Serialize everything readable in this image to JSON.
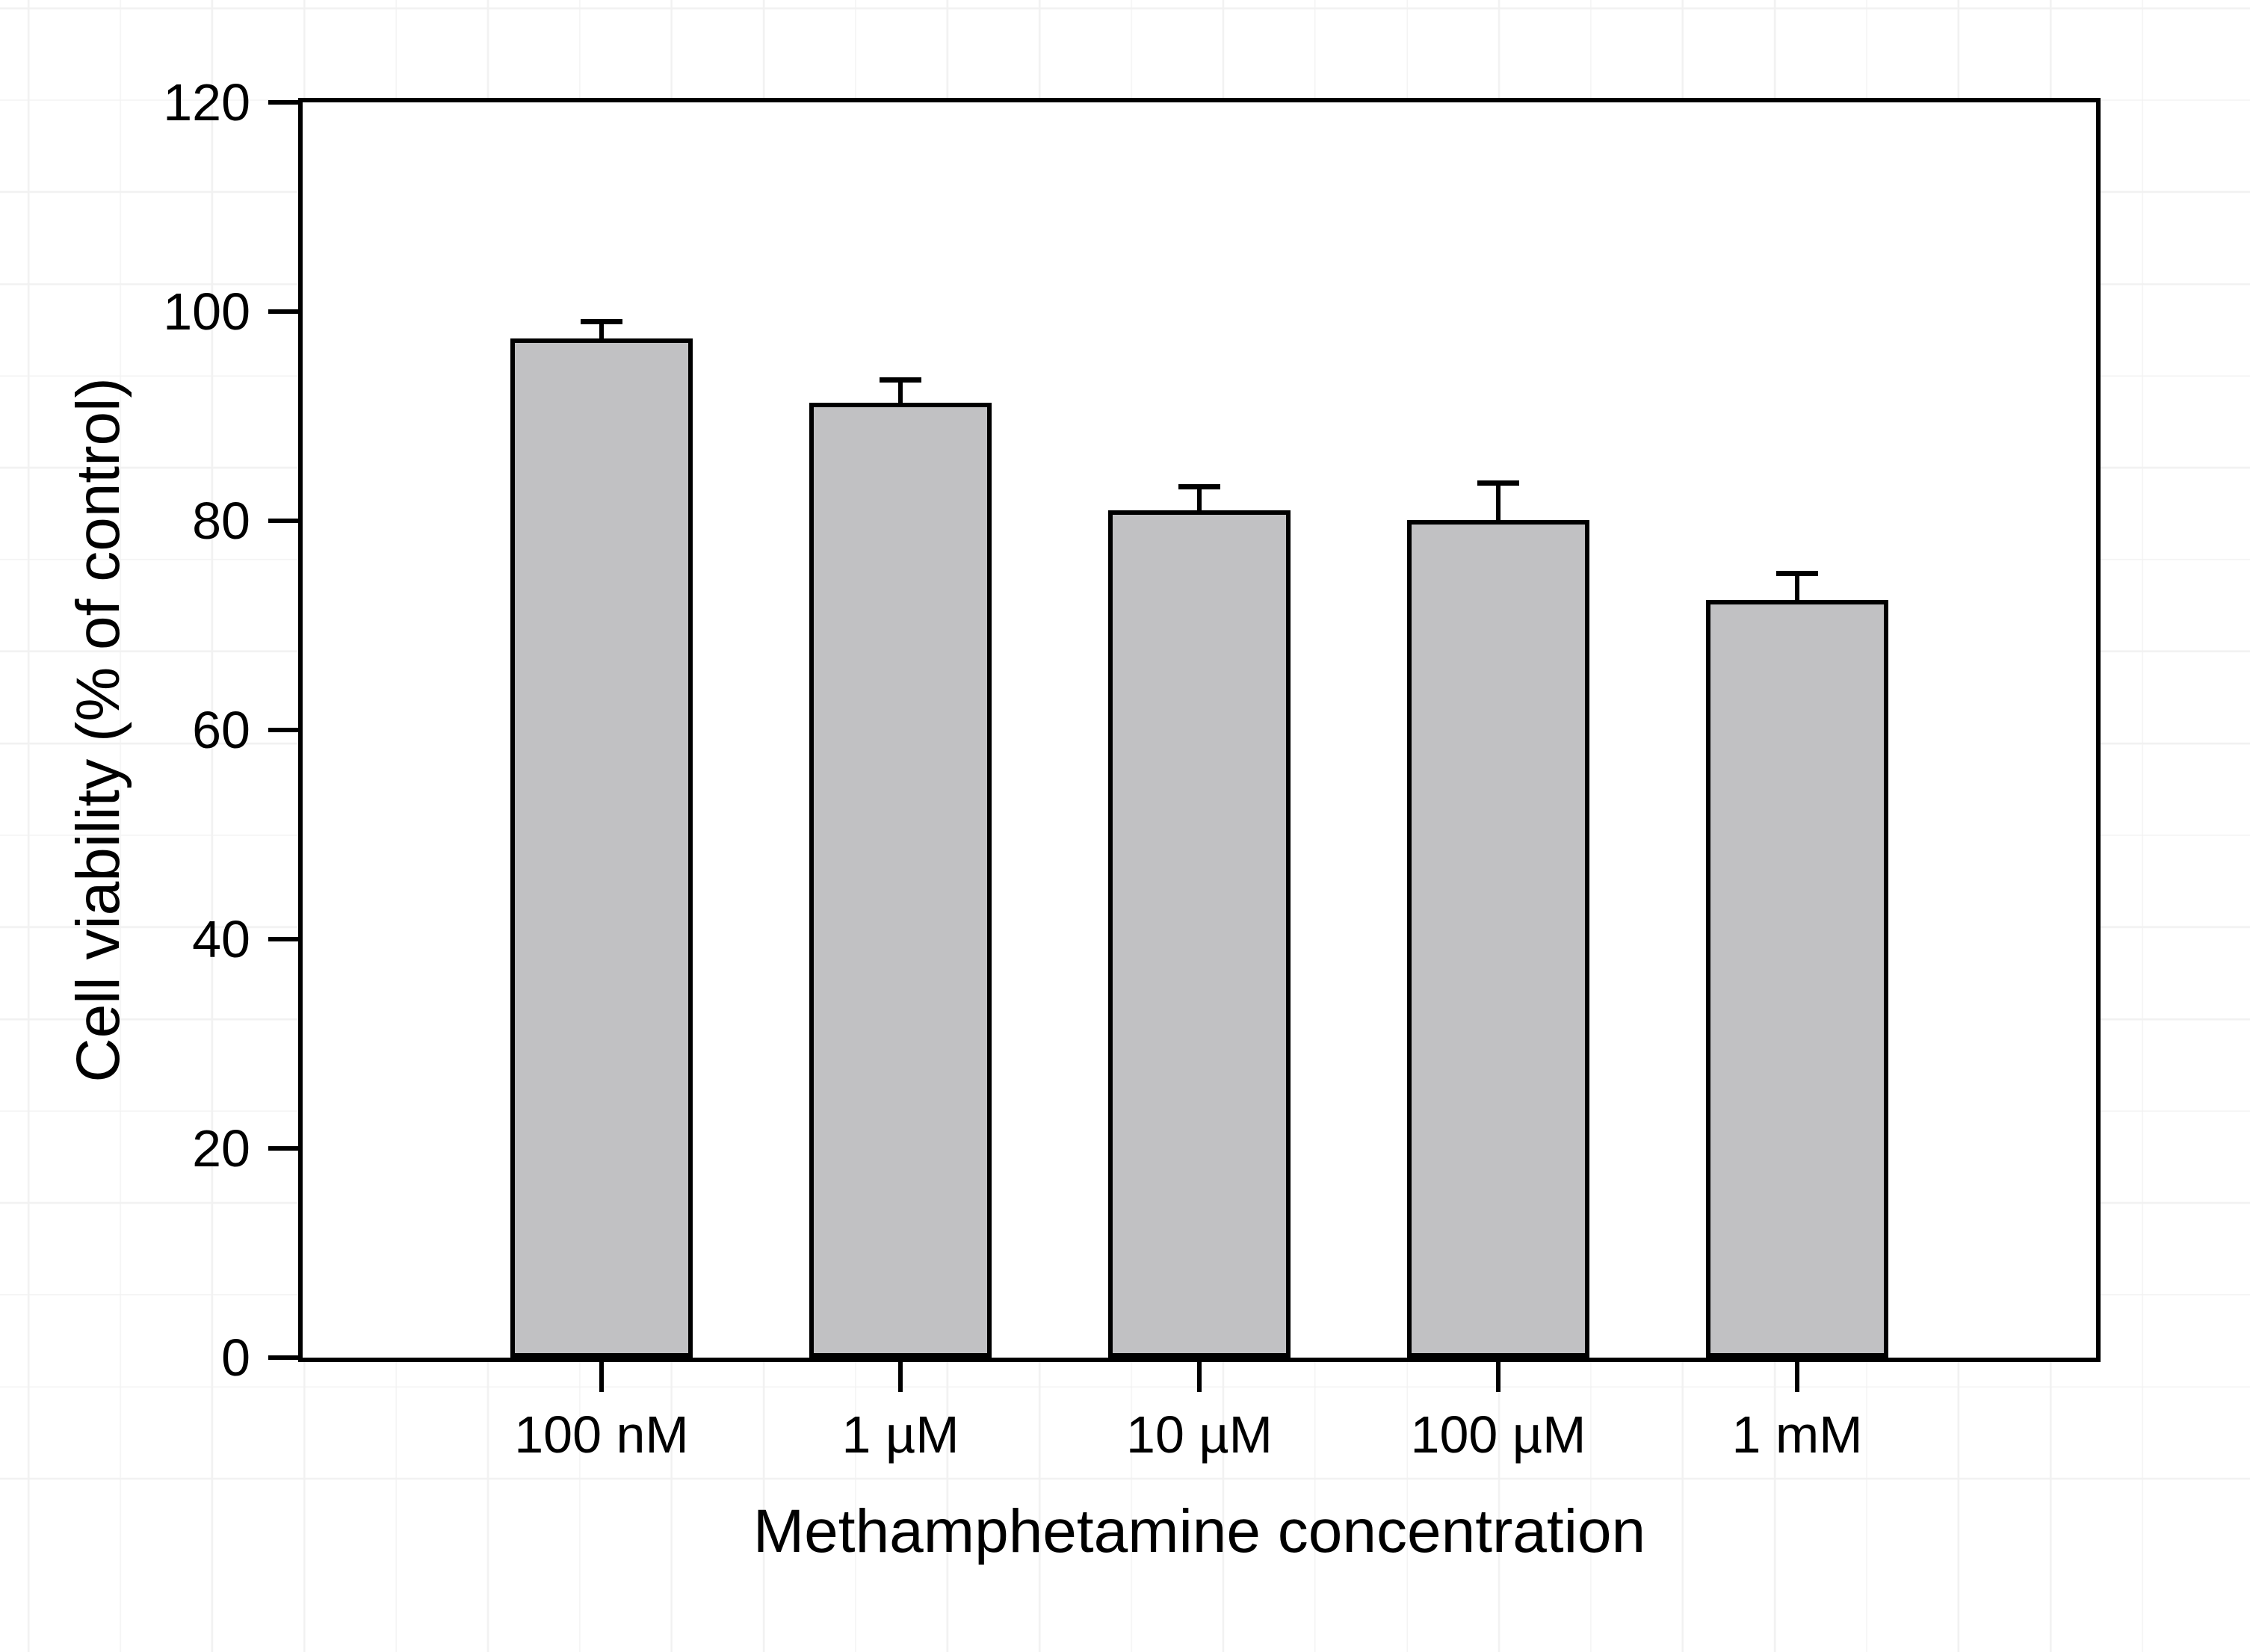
{
  "chart_data": {
    "type": "bar",
    "title": "",
    "categories": [
      "100 nM",
      "1 µM",
      "10 µM",
      "100 µM",
      "1 mM"
    ],
    "values": [
      97.4,
      91.3,
      81.0,
      80.1,
      72.4
    ],
    "errors_upper": [
      1.6,
      2.1,
      2.2,
      3.5,
      2.5
    ],
    "error_bar_style": "upper cap only",
    "xlabel": "Methamphetamine concentration",
    "ylabel": "Cell viability (% of control)",
    "ylim": [
      0,
      120
    ],
    "yticks": [
      0,
      20,
      40,
      60,
      80,
      100,
      120
    ],
    "grid": "off inside plot; faint canvas grid behind chart",
    "legend": "none",
    "bar_fill_color": "#c1c1c3",
    "bar_border_color": "#000000",
    "axis_color": "#000000",
    "plot_background": "#ffffff"
  }
}
